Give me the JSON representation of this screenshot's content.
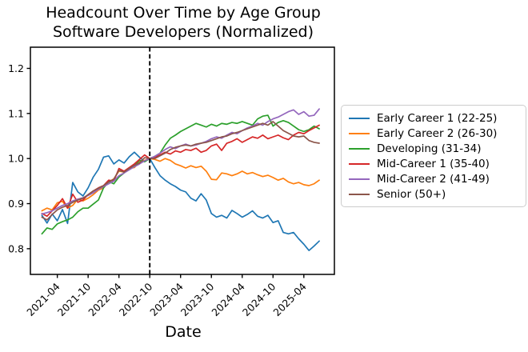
{
  "chart_data": {
    "type": "line",
    "title": "Headcount Over Time by Age Group",
    "subtitle": "Software Developers (Normalized)",
    "xlabel": "Date",
    "ylabel": "",
    "grid": false,
    "legend_position": "right-outside",
    "y_ticks": [
      0.8,
      0.9,
      1.0,
      1.1,
      1.2
    ],
    "ylim": [
      0.743,
      1.247
    ],
    "x_tick_labels": [
      "2021-04",
      "2021-10",
      "2022-04",
      "2022-10",
      "2023-04",
      "2023-10",
      "2024-04",
      "2024-10",
      "2025-04"
    ],
    "x_tick_indices": [
      3,
      9,
      15,
      21,
      27,
      33,
      39,
      45,
      51
    ],
    "xlim_index": [
      -2.24,
      56.95
    ],
    "vline": {
      "x_index": 21,
      "x_month": "2022-10",
      "style": "dashed",
      "color": "#000000"
    },
    "x_months": [
      "2021-01",
      "2021-02",
      "2021-03",
      "2021-04",
      "2021-05",
      "2021-06",
      "2021-07",
      "2021-08",
      "2021-09",
      "2021-10",
      "2021-11",
      "2021-12",
      "2022-01",
      "2022-02",
      "2022-03",
      "2022-04",
      "2022-05",
      "2022-06",
      "2022-07",
      "2022-08",
      "2022-09",
      "2022-10",
      "2022-11",
      "2022-12",
      "2023-01",
      "2023-02",
      "2023-03",
      "2023-04",
      "2023-05",
      "2023-06",
      "2023-07",
      "2023-08",
      "2023-09",
      "2023-10",
      "2023-11",
      "2023-12",
      "2024-01",
      "2024-02",
      "2024-03",
      "2024-04",
      "2024-05",
      "2024-06",
      "2024-07",
      "2024-08",
      "2024-09",
      "2024-10",
      "2024-11",
      "2024-12",
      "2025-01",
      "2025-02",
      "2025-03",
      "2025-04",
      "2025-05",
      "2025-06",
      "2025-07"
    ],
    "series": [
      {
        "name": "Early Career 1 (22-25)",
        "color": "#1f77b4",
        "values": [
          0.874,
          0.857,
          0.877,
          0.862,
          0.887,
          0.856,
          0.947,
          0.926,
          0.917,
          0.935,
          0.959,
          0.976,
          1.003,
          1.006,
          0.988,
          0.997,
          0.99,
          1.004,
          1.014,
          1.003,
          0.993,
          1.0,
          0.98,
          0.962,
          0.952,
          0.944,
          0.938,
          0.93,
          0.926,
          0.912,
          0.906,
          0.922,
          0.908,
          0.878,
          0.87,
          0.874,
          0.868,
          0.885,
          0.878,
          0.87,
          0.876,
          0.884,
          0.872,
          0.868,
          0.874,
          0.858,
          0.862,
          0.836,
          0.833,
          0.836,
          0.822,
          0.81,
          0.796,
          0.806,
          0.817
        ]
      },
      {
        "name": "Early Career 2 (26-30)",
        "color": "#ff7f0e",
        "values": [
          0.884,
          0.89,
          0.886,
          0.902,
          0.905,
          0.89,
          0.896,
          0.91,
          0.906,
          0.912,
          0.92,
          0.93,
          0.935,
          0.948,
          0.955,
          0.972,
          0.97,
          0.978,
          0.98,
          0.992,
          0.996,
          1.0,
          0.998,
          0.994,
          1.0,
          0.996,
          0.988,
          0.984,
          0.979,
          0.984,
          0.98,
          0.983,
          0.972,
          0.954,
          0.953,
          0.968,
          0.966,
          0.962,
          0.966,
          0.972,
          0.966,
          0.969,
          0.964,
          0.96,
          0.963,
          0.958,
          0.952,
          0.956,
          0.948,
          0.944,
          0.947,
          0.942,
          0.94,
          0.944,
          0.952
        ]
      },
      {
        "name": "Developing (31-34)",
        "color": "#2ca02c",
        "values": [
          0.833,
          0.846,
          0.843,
          0.855,
          0.86,
          0.864,
          0.87,
          0.882,
          0.89,
          0.89,
          0.899,
          0.908,
          0.935,
          0.949,
          0.944,
          0.959,
          0.968,
          0.978,
          0.984,
          0.996,
          0.993,
          1.0,
          1.005,
          1.012,
          1.03,
          1.045,
          1.052,
          1.06,
          1.066,
          1.072,
          1.078,
          1.074,
          1.07,
          1.076,
          1.072,
          1.078,
          1.076,
          1.08,
          1.078,
          1.082,
          1.078,
          1.074,
          1.088,
          1.094,
          1.096,
          1.072,
          1.08,
          1.084,
          1.08,
          1.072,
          1.064,
          1.06,
          1.064,
          1.072,
          1.066
        ]
      },
      {
        "name": "Mid-Career 1 (35-40)",
        "color": "#d62728",
        "values": [
          0.878,
          0.872,
          0.884,
          0.896,
          0.911,
          0.89,
          0.921,
          0.903,
          0.908,
          0.92,
          0.928,
          0.935,
          0.94,
          0.952,
          0.95,
          0.978,
          0.972,
          0.98,
          0.988,
          0.998,
          1.008,
          1.0,
          1.003,
          1.008,
          1.014,
          1.01,
          1.017,
          1.014,
          1.02,
          1.018,
          1.023,
          1.014,
          1.018,
          1.028,
          1.032,
          1.018,
          1.034,
          1.038,
          1.044,
          1.036,
          1.042,
          1.048,
          1.045,
          1.052,
          1.044,
          1.048,
          1.052,
          1.046,
          1.042,
          1.052,
          1.058,
          1.055,
          1.062,
          1.068,
          1.074
        ]
      },
      {
        "name": "Mid-Career 2 (41-49)",
        "color": "#9467bd",
        "values": [
          0.877,
          0.88,
          0.884,
          0.89,
          0.896,
          0.9,
          0.906,
          0.91,
          0.913,
          0.918,
          0.924,
          0.932,
          0.938,
          0.944,
          0.95,
          0.962,
          0.968,
          0.975,
          0.982,
          0.988,
          0.995,
          1.0,
          1.005,
          1.012,
          1.02,
          1.026,
          1.022,
          1.028,
          1.032,
          1.028,
          1.03,
          1.034,
          1.038,
          1.044,
          1.048,
          1.045,
          1.052,
          1.058,
          1.055,
          1.062,
          1.068,
          1.072,
          1.078,
          1.074,
          1.082,
          1.088,
          1.092,
          1.098,
          1.104,
          1.108,
          1.098,
          1.104,
          1.094,
          1.096,
          1.11
        ]
      },
      {
        "name": "Senior (50+)",
        "color": "#8c564b",
        "values": [
          0.87,
          0.864,
          0.876,
          0.886,
          0.892,
          0.896,
          0.903,
          0.908,
          0.912,
          0.92,
          0.928,
          0.934,
          0.94,
          0.948,
          0.954,
          0.974,
          0.97,
          0.978,
          0.985,
          0.99,
          1.002,
          1.0,
          1.0,
          1.006,
          1.012,
          1.02,
          1.025,
          1.028,
          1.03,
          1.028,
          1.032,
          1.034,
          1.036,
          1.04,
          1.044,
          1.048,
          1.05,
          1.055,
          1.058,
          1.062,
          1.066,
          1.07,
          1.074,
          1.078,
          1.074,
          1.082,
          1.072,
          1.062,
          1.056,
          1.05,
          1.048,
          1.05,
          1.04,
          1.036,
          1.034
        ]
      }
    ]
  }
}
